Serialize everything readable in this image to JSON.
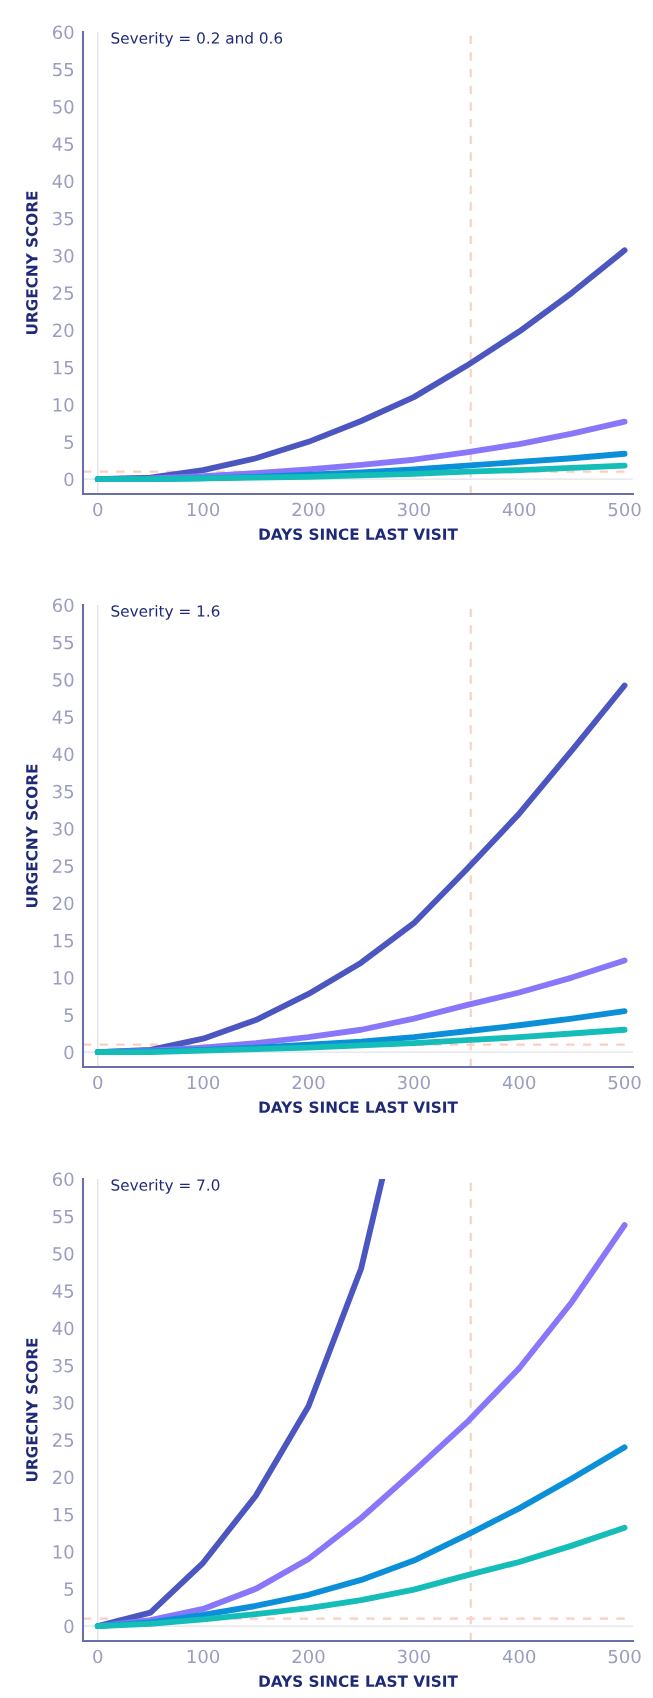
{
  "chart_data": [
    {
      "type": "line",
      "xlabel": "DAYS SINCE LAST VISIT",
      "ylabel": "URGECNY SCORE",
      "annotations": [
        "Severity = 0.2 and 0.6"
      ],
      "x": [
        0,
        50,
        100,
        150,
        200,
        250,
        300,
        350,
        400,
        450,
        500
      ],
      "series": [
        {
          "color": "#4c56c0",
          "values": [
            0,
            0.2,
            1.2,
            2.8,
            5,
            7.8,
            11,
            15.2,
            19.8,
            25,
            30.7
          ]
        },
        {
          "color": "#8877fa",
          "values": [
            0,
            0.1,
            0.4,
            0.8,
            1.3,
            1.9,
            2.6,
            3.6,
            4.7,
            6.1,
            7.7
          ]
        },
        {
          "color": "#0a8fd8",
          "values": [
            0,
            0,
            0.1,
            0.3,
            0.6,
            0.9,
            1.3,
            1.8,
            2.3,
            2.8,
            3.4
          ]
        },
        {
          "color": "#14bdb8",
          "values": [
            0,
            0,
            0.1,
            0.2,
            0.3,
            0.5,
            0.7,
            1.0,
            1.2,
            1.5,
            1.8
          ]
        }
      ],
      "xlim": [
        -14,
        508
      ],
      "ylim": [
        -2,
        60
      ],
      "xticks": [
        0,
        100,
        200,
        300,
        400,
        500
      ],
      "yticks": [
        0,
        5,
        10,
        15,
        20,
        25,
        30,
        35,
        40,
        45,
        50,
        55,
        60
      ],
      "ref_lines": [
        {
          "axis": "x",
          "value": 0,
          "color": "#e2e2ec",
          "line_style": "solid"
        },
        {
          "axis": "y",
          "value": 0,
          "color": "#e2e2ec",
          "line_style": "solid"
        },
        {
          "axis": "x",
          "value": 354,
          "color": "#f9cfc4",
          "line_style": "dashed"
        },
        {
          "axis": "y",
          "value": 1,
          "color": "#f9cfc4",
          "line_style": "dashed"
        }
      ],
      "grid": false,
      "marker": "none",
      "line_style": "solid"
    },
    {
      "type": "line",
      "xlabel": "DAYS SINCE LAST VISIT",
      "ylabel": "URGECNY SCORE",
      "annotations": [
        "Severity = 1.6"
      ],
      "x": [
        0,
        50,
        100,
        150,
        200,
        250,
        300,
        350,
        400,
        450,
        500
      ],
      "series": [
        {
          "color": "#4c56c0",
          "values": [
            0,
            0.3,
            1.8,
            4.3,
            7.8,
            12,
            17.3,
            24.5,
            32,
            40.5,
            49.2
          ]
        },
        {
          "color": "#8877fa",
          "values": [
            0,
            0.2,
            0.6,
            1.2,
            2.0,
            3.0,
            4.5,
            6.3,
            8.0,
            10.0,
            12.3
          ]
        },
        {
          "color": "#0a8fd8",
          "values": [
            0,
            0.1,
            0.3,
            0.6,
            1.0,
            1.4,
            2.0,
            2.8,
            3.6,
            4.5,
            5.5
          ]
        },
        {
          "color": "#14bdb8",
          "values": [
            0,
            0,
            0.2,
            0.4,
            0.6,
            0.9,
            1.2,
            1.6,
            2.0,
            2.5,
            3.0
          ]
        }
      ],
      "xlim": [
        -14,
        508
      ],
      "ylim": [
        -2,
        60
      ],
      "xticks": [
        0,
        100,
        200,
        300,
        400,
        500
      ],
      "yticks": [
        0,
        5,
        10,
        15,
        20,
        25,
        30,
        35,
        40,
        45,
        50,
        55,
        60
      ],
      "ref_lines": [
        {
          "axis": "x",
          "value": 0,
          "color": "#e2e2ec",
          "line_style": "solid"
        },
        {
          "axis": "y",
          "value": 0,
          "color": "#e2e2ec",
          "line_style": "solid"
        },
        {
          "axis": "x",
          "value": 354,
          "color": "#f9cfc4",
          "line_style": "dashed"
        },
        {
          "axis": "y",
          "value": 1,
          "color": "#f9cfc4",
          "line_style": "dashed"
        }
      ],
      "grid": false,
      "marker": "none",
      "line_style": "solid"
    },
    {
      "type": "line",
      "xlabel": "DAYS SINCE LAST VISIT",
      "ylabel": "URGECNY SCORE",
      "annotations": [
        "Severity = 7.0"
      ],
      "x": [
        0,
        50,
        100,
        150,
        200,
        250,
        300,
        350,
        400,
        450,
        500
      ],
      "series": [
        {
          "color": "#4c56c0",
          "x": [
            0,
            50,
            100,
            150,
            200,
            250,
            270
          ],
          "values": [
            0,
            1.8,
            8.5,
            17.5,
            29.5,
            48,
            60
          ]
        },
        {
          "color": "#8877fa",
          "values": [
            0,
            0.8,
            2.3,
            5,
            9,
            14.5,
            20.8,
            27.3,
            34.6,
            43.5,
            53.8
          ]
        },
        {
          "color": "#0a8fd8",
          "values": [
            0,
            0.5,
            1.5,
            2.7,
            4.2,
            6.2,
            8.8,
            12.2,
            15.8,
            19.8,
            24
          ]
        },
        {
          "color": "#14bdb8",
          "values": [
            0,
            0.3,
            0.9,
            1.6,
            2.4,
            3.5,
            4.9,
            6.8,
            8.6,
            10.8,
            13.2
          ]
        }
      ],
      "xlim": [
        -14,
        508
      ],
      "ylim": [
        -2,
        60
      ],
      "xticks": [
        0,
        100,
        200,
        300,
        400,
        500
      ],
      "yticks": [
        0,
        5,
        10,
        15,
        20,
        25,
        30,
        35,
        40,
        45,
        50,
        55,
        60
      ],
      "ref_lines": [
        {
          "axis": "x",
          "value": 0,
          "color": "#e2e2ec",
          "line_style": "solid"
        },
        {
          "axis": "y",
          "value": 0,
          "color": "#e2e2ec",
          "line_style": "solid"
        },
        {
          "axis": "x",
          "value": 354,
          "color": "#f9cfc4",
          "line_style": "dashed"
        },
        {
          "axis": "y",
          "value": 1,
          "color": "#f9cfc4",
          "line_style": "dashed"
        }
      ],
      "grid": false,
      "marker": "none",
      "line_style": "solid"
    }
  ]
}
